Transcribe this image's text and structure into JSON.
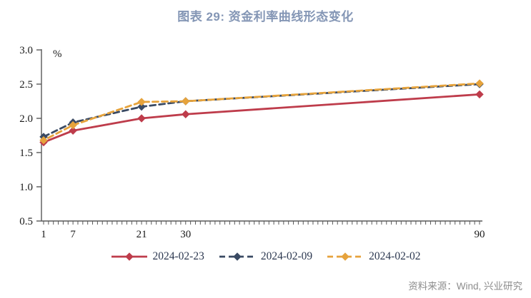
{
  "page": {
    "title": "图表 29: 资金利率曲线形态变化",
    "source": "资料来源：Wind, 兴业研究"
  },
  "colors": {
    "title_text": "#8496B5",
    "axis_line": "#595959",
    "axis_text": "#1A1A1A",
    "legend_text": "#2C3850",
    "source_text": "#8C8C8C",
    "series_red": "#BE3C4B",
    "series_navy": "#3A4A63",
    "series_gold": "#E6A33C"
  },
  "chart_data": {
    "type": "line",
    "title": "图表 29: 资金利率曲线形态变化",
    "xlabel": "",
    "ylabel": "%",
    "x": [
      1,
      7,
      21,
      30,
      90
    ],
    "x_tick_labels": [
      "1",
      "7",
      "21",
      "30",
      "90"
    ],
    "xlim": [
      1,
      90
    ],
    "ylim": [
      0.5,
      3.0
    ],
    "y_ticks": [
      3.0,
      2.5,
      2.0,
      1.5,
      1.0,
      0.5
    ],
    "minor_x_tick_step": 1,
    "grid": false,
    "legend_position": "bottom",
    "series": [
      {
        "name": "2024-02-23",
        "color": "#BE3C4B",
        "line_style": "solid",
        "marker": "diamond",
        "values": [
          1.65,
          1.82,
          2.0,
          2.06,
          2.35
        ]
      },
      {
        "name": "2024-02-09",
        "color": "#3A4A63",
        "line_style": "dashed",
        "marker": "diamond",
        "values": [
          1.73,
          1.94,
          2.17,
          2.25,
          2.5
        ]
      },
      {
        "name": "2024-02-02",
        "color": "#E6A33C",
        "line_style": "dashed",
        "marker": "diamond",
        "values": [
          1.68,
          1.9,
          2.24,
          2.25,
          2.51
        ]
      }
    ]
  }
}
